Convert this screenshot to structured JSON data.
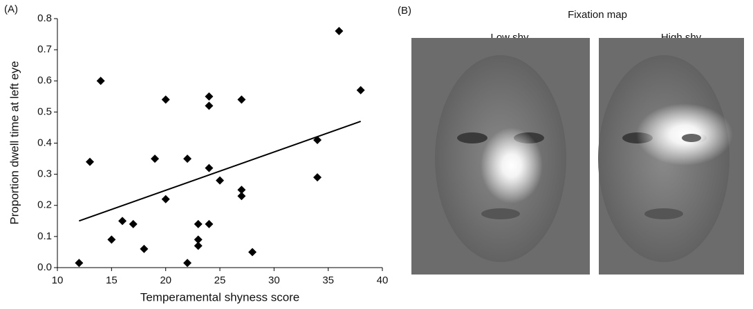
{
  "chart_data": {
    "type": "scatter",
    "panel_label": "(A)",
    "x_label": "Temperamental shyness score",
    "y_label": "Proportion dwell time at left eye",
    "x": [
      12,
      13,
      14,
      15,
      16,
      17,
      18,
      19,
      20,
      20,
      22,
      22,
      23,
      23,
      23,
      24,
      24,
      24,
      24,
      25,
      27,
      27,
      27,
      28,
      34,
      34,
      36,
      38
    ],
    "values": [
      0.015,
      0.34,
      0.6,
      0.09,
      0.15,
      0.14,
      0.06,
      0.35,
      0.54,
      0.22,
      0.35,
      0.015,
      0.14,
      0.09,
      0.07,
      0.55,
      0.52,
      0.32,
      0.14,
      0.28,
      0.54,
      0.25,
      0.23,
      0.05,
      0.41,
      0.29,
      0.76,
      0.57
    ],
    "color": "#000000",
    "trendline": {
      "x": [
        12,
        38
      ],
      "y": [
        0.15,
        0.47
      ]
    },
    "xlim": [
      10,
      40
    ],
    "xticks": [
      10,
      15,
      20,
      25,
      30,
      35,
      40
    ],
    "ylim": [
      0,
      0.8
    ],
    "yticks": [
      {
        "value": 0,
        "label": "0.0"
      },
      0.1,
      0.2,
      0.3,
      0.4,
      0.5,
      0.6,
      0.7,
      0.8
    ]
  },
  "figure_b": {
    "panel_label": "(B)",
    "title": "Fixation map",
    "images": [
      "Low shy",
      "High shy"
    ]
  }
}
